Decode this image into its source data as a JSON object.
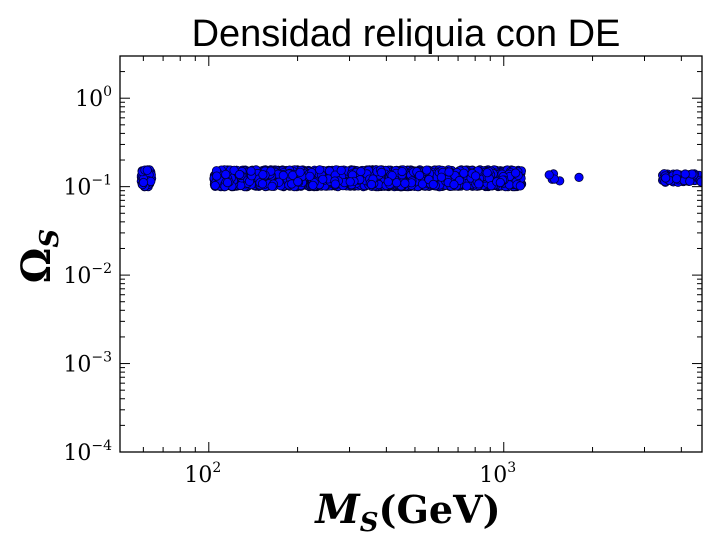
{
  "chart_data": {
    "type": "scatter",
    "title": "Densidad reliquia con DE",
    "xlabel": {
      "symbol": "M",
      "subscript": "S",
      "unit": "(GeV)"
    },
    "ylabel": {
      "symbol": "Ω",
      "subscript": "S"
    },
    "x_scale": "log",
    "y_scale": "log",
    "xlim": [
      50,
      4700
    ],
    "ylim": [
      0.0001,
      3
    ],
    "x_ticks": [
      {
        "value": 100,
        "base": "10",
        "exp": "2"
      },
      {
        "value": 1000,
        "base": "10",
        "exp": "3"
      }
    ],
    "y_ticks": [
      {
        "value": 1,
        "base": "10",
        "exp": "0"
      },
      {
        "value": 0.1,
        "base": "10",
        "exp": "−1"
      },
      {
        "value": 0.01,
        "base": "10",
        "exp": "−2"
      },
      {
        "value": 0.001,
        "base": "10",
        "exp": "−3"
      },
      {
        "value": 0.0001,
        "base": "10",
        "exp": "−4"
      }
    ],
    "grid": false,
    "marker_color": "#0000ff",
    "marker_edge": "#000033",
    "clusters": [
      {
        "x_range": [
          59,
          64
        ],
        "y_range": [
          0.1,
          0.155
        ],
        "density": 90
      },
      {
        "x_range": [
          104,
          1150
        ],
        "y_range": [
          0.1,
          0.155
        ],
        "density": 2600
      },
      {
        "x_range": [
          1380,
          1560
        ],
        "y_range": [
          0.115,
          0.14
        ],
        "density": 6
      },
      {
        "x_range": [
          1780,
          1800
        ],
        "y_range": [
          0.125,
          0.128
        ],
        "density": 1
      },
      {
        "x_range": [
          3450,
          4700
        ],
        "y_range": [
          0.112,
          0.14
        ],
        "density": 70
      }
    ]
  }
}
